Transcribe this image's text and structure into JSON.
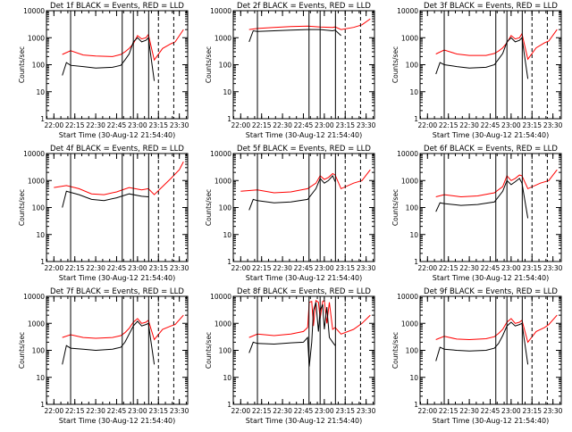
{
  "chart_data": [
    {
      "type": "line",
      "title": "Det 1f BLACK = Events, RED = LLD",
      "xlabel": "Start Time (30-Aug-12 21:54:40)",
      "ylabel": "Counts/sec",
      "yscale": "log",
      "ylim": [
        1,
        10000
      ],
      "xlim": [
        21.9111,
        23.6
      ],
      "x_ticks": [
        "22:00",
        "22:15",
        "22:30",
        "22:45",
        "23:00",
        "23:15",
        "23:30"
      ],
      "y_ticks": [
        "1",
        "10",
        "100",
        "1000",
        "10000"
      ],
      "vlines": [
        22.2,
        22.817,
        22.95,
        23.1333
      ],
      "dashed_vlines": [
        23.25,
        23.4333
      ],
      "series": [
        {
          "name": "LLD",
          "color": "#ff0000",
          "x": [
            22.1,
            22.2,
            22.35,
            22.5,
            22.7,
            22.8,
            22.85,
            22.9,
            22.95,
            23.0,
            23.05,
            23.1,
            23.13,
            23.2,
            23.3,
            23.4,
            23.45,
            23.55
          ],
          "y": [
            240,
            330,
            230,
            210,
            200,
            240,
            300,
            400,
            600,
            1200,
            900,
            1000,
            1300,
            150,
            400,
            600,
            700,
            2000
          ]
        },
        {
          "name": "Events",
          "color": "#000000",
          "x": [
            22.1,
            22.15,
            22.2,
            22.35,
            22.5,
            22.7,
            22.8,
            22.85,
            22.9,
            22.95,
            23.0,
            23.05,
            23.1,
            23.13,
            23.2
          ],
          "y": [
            40,
            120,
            95,
            85,
            75,
            80,
            95,
            150,
            250,
            700,
            1000,
            700,
            800,
            1000,
            25
          ]
        }
      ]
    },
    {
      "type": "line",
      "title": "Det 2f BLACK = Events, RED = LLD",
      "xlabel": "Start Time (30-Aug-12 21:54:40)",
      "ylabel": "Counts/sec",
      "yscale": "log",
      "ylim": [
        1,
        10000
      ],
      "xlim": [
        21.9111,
        23.6
      ],
      "x_ticks": [
        "22:00",
        "22:15",
        "22:30",
        "22:45",
        "23:00",
        "23:15",
        "23:30"
      ],
      "y_ticks": [
        "1",
        "10",
        "100",
        "1000",
        "10000"
      ],
      "vlines": [
        22.2,
        22.817,
        22.95,
        23.1333
      ],
      "dashed_vlines": [
        23.25,
        23.4333
      ],
      "series": [
        {
          "name": "LLD",
          "color": "#ff0000",
          "x": [
            22.1,
            22.2,
            22.4,
            22.6,
            22.8,
            22.95,
            23.1,
            23.13,
            23.2,
            23.35,
            23.45,
            23.55
          ],
          "y": [
            2000,
            2200,
            2400,
            2600,
            2700,
            2500,
            2400,
            2500,
            2000,
            2400,
            3000,
            5000
          ]
        },
        {
          "name": "Events",
          "color": "#000000",
          "x": [
            22.1,
            22.15,
            22.2,
            22.4,
            22.6,
            22.8,
            22.95,
            23.1,
            23.13,
            23.2
          ],
          "y": [
            700,
            1800,
            1700,
            1800,
            1900,
            2000,
            2000,
            1800,
            1900,
            1200
          ]
        }
      ]
    },
    {
      "type": "line",
      "title": "Det 3f BLACK = Events, RED = LLD",
      "xlabel": "Start Time (30-Aug-12 21:54:40)",
      "ylabel": "Counts/sec",
      "yscale": "log",
      "ylim": [
        1,
        10000
      ],
      "xlim": [
        21.9111,
        23.6
      ],
      "x_ticks": [
        "22:00",
        "22:15",
        "22:30",
        "22:45",
        "23:00",
        "23:15",
        "23:30"
      ],
      "y_ticks": [
        "1",
        "10",
        "100",
        "1000",
        "10000"
      ],
      "vlines": [
        22.2,
        22.817,
        22.95,
        23.1333
      ],
      "dashed_vlines": [
        23.25,
        23.4333
      ],
      "series": [
        {
          "name": "LLD",
          "color": "#ff0000",
          "x": [
            22.1,
            22.2,
            22.35,
            22.5,
            22.7,
            22.8,
            22.85,
            22.9,
            22.95,
            23.0,
            23.05,
            23.1,
            23.13,
            23.2,
            23.3,
            23.4,
            23.45,
            23.55
          ],
          "y": [
            250,
            350,
            250,
            220,
            220,
            260,
            320,
            420,
            650,
            1200,
            900,
            1000,
            1400,
            160,
            420,
            650,
            750,
            2000
          ]
        },
        {
          "name": "Events",
          "color": "#000000",
          "x": [
            22.1,
            22.15,
            22.2,
            22.35,
            22.5,
            22.7,
            22.8,
            22.85,
            22.9,
            22.95,
            23.0,
            23.05,
            23.1,
            23.13,
            23.2
          ],
          "y": [
            45,
            120,
            100,
            85,
            75,
            80,
            100,
            160,
            260,
            700,
            1000,
            700,
            800,
            1000,
            30
          ]
        }
      ]
    },
    {
      "type": "line",
      "title": "Det 4f BLACK = Events, RED = LLD",
      "xlabel": "Start Time (30-Aug-12 21:54:40)",
      "ylabel": "Counts/sec",
      "yscale": "log",
      "ylim": [
        1,
        10000
      ],
      "xlim": [
        21.9111,
        23.6
      ],
      "x_ticks": [
        "22:00",
        "22:15",
        "22:30",
        "22:45",
        "23:00",
        "23:15",
        "23:30"
      ],
      "y_ticks": [
        "1",
        "10",
        "100",
        "1000",
        "10000"
      ],
      "vlines": [
        22.2,
        22.817,
        22.95,
        23.1333
      ],
      "dashed_vlines": [
        23.25,
        23.4333
      ],
      "series": [
        {
          "name": "LLD",
          "color": "#ff0000",
          "x": [
            22.0,
            22.15,
            22.3,
            22.45,
            22.6,
            22.75,
            22.9,
            23.05,
            23.13,
            23.2,
            23.3,
            23.4,
            23.5,
            23.55
          ],
          "y": [
            550,
            650,
            500,
            320,
            300,
            380,
            550,
            450,
            500,
            300,
            600,
            1200,
            2500,
            5000
          ]
        },
        {
          "name": "Events",
          "color": "#000000",
          "x": [
            22.1,
            22.15,
            22.3,
            22.45,
            22.6,
            22.75,
            22.9,
            23.05,
            23.13
          ],
          "y": [
            100,
            400,
            300,
            200,
            180,
            230,
            320,
            260,
            250
          ]
        }
      ]
    },
    {
      "type": "line",
      "title": "Det 5f BLACK = Events, RED = LLD",
      "xlabel": "Start Time (30-Aug-12 21:54:40)",
      "ylabel": "Counts/sec",
      "yscale": "log",
      "ylim": [
        1,
        10000
      ],
      "xlim": [
        21.9111,
        23.6
      ],
      "x_ticks": [
        "22:00",
        "22:15",
        "22:30",
        "22:45",
        "23:00",
        "23:15",
        "23:30"
      ],
      "y_ticks": [
        "1",
        "10",
        "100",
        "1000",
        "10000"
      ],
      "vlines": [
        22.2,
        22.817,
        22.95,
        23.1333
      ],
      "dashed_vlines": [
        23.25,
        23.4333
      ],
      "series": [
        {
          "name": "LLD",
          "color": "#ff0000",
          "x": [
            22.0,
            22.2,
            22.4,
            22.6,
            22.8,
            22.9,
            22.95,
            23.0,
            23.05,
            23.1,
            23.13,
            23.2,
            23.35,
            23.45,
            23.55
          ],
          "y": [
            400,
            450,
            350,
            380,
            500,
            800,
            1500,
            1100,
            1300,
            1800,
            1600,
            500,
            800,
            1000,
            2500
          ]
        },
        {
          "name": "Events",
          "color": "#000000",
          "x": [
            22.1,
            22.15,
            22.2,
            22.4,
            22.6,
            22.8,
            22.9,
            22.95,
            23.0,
            23.05,
            23.1,
            23.13
          ],
          "y": [
            80,
            200,
            180,
            150,
            160,
            200,
            500,
            1200,
            800,
            1000,
            1500,
            900
          ]
        }
      ]
    },
    {
      "type": "line",
      "title": "Det 6f BLACK = Events, RED = LLD",
      "xlabel": "Start Time (30-Aug-12 21:54:40)",
      "ylabel": "Counts/sec",
      "yscale": "log",
      "ylim": [
        1,
        10000
      ],
      "xlim": [
        21.9111,
        23.6
      ],
      "x_ticks": [
        "22:00",
        "22:15",
        "22:30",
        "22:45",
        "23:00",
        "23:15",
        "23:30"
      ],
      "y_ticks": [
        "1",
        "10",
        "100",
        "1000",
        "10000"
      ],
      "vlines": [
        22.2,
        22.817,
        22.95,
        23.1333
      ],
      "dashed_vlines": [
        23.25,
        23.4333
      ],
      "series": [
        {
          "name": "LLD",
          "color": "#ff0000",
          "x": [
            22.1,
            22.2,
            22.4,
            22.6,
            22.8,
            22.9,
            22.95,
            23.0,
            23.05,
            23.1,
            23.13,
            23.2,
            23.35,
            23.45,
            23.55
          ],
          "y": [
            250,
            300,
            250,
            270,
            350,
            600,
            1500,
            1000,
            1200,
            1600,
            1500,
            500,
            800,
            1000,
            2500
          ]
        },
        {
          "name": "Events",
          "color": "#000000",
          "x": [
            22.1,
            22.15,
            22.2,
            22.4,
            22.6,
            22.8,
            22.9,
            22.95,
            23.0,
            23.05,
            23.1,
            23.13,
            23.2
          ],
          "y": [
            70,
            150,
            140,
            120,
            130,
            160,
            400,
            1000,
            700,
            900,
            1200,
            800,
            40
          ]
        }
      ]
    },
    {
      "type": "line",
      "title": "Det 7f BLACK = Events, RED = LLD",
      "xlabel": "Start Time (30-Aug-12 21:54:40)",
      "ylabel": "Counts/sec",
      "yscale": "log",
      "ylim": [
        1,
        10000
      ],
      "xlim": [
        21.9111,
        23.6
      ],
      "x_ticks": [
        "22:00",
        "22:15",
        "22:30",
        "22:45",
        "23:00",
        "23:15",
        "23:30"
      ],
      "y_ticks": [
        "1",
        "10",
        "100",
        "1000",
        "10000"
      ],
      "vlines": [
        22.2,
        22.817,
        22.95,
        23.1333
      ],
      "dashed_vlines": [
        23.25,
        23.4333
      ],
      "series": [
        {
          "name": "LLD",
          "color": "#ff0000",
          "x": [
            22.1,
            22.2,
            22.35,
            22.5,
            22.7,
            22.8,
            22.85,
            22.9,
            22.95,
            23.0,
            23.05,
            23.1,
            23.13,
            23.2,
            23.3,
            23.4,
            23.45,
            23.55
          ],
          "y": [
            300,
            380,
            300,
            280,
            300,
            350,
            450,
            650,
            1100,
            1500,
            1000,
            1100,
            1300,
            250,
            600,
            800,
            900,
            2000
          ]
        },
        {
          "name": "Events",
          "color": "#000000",
          "x": [
            22.1,
            22.15,
            22.2,
            22.35,
            22.5,
            22.7,
            22.8,
            22.85,
            22.9,
            22.95,
            23.0,
            23.05,
            23.1,
            23.13,
            23.2
          ],
          "y": [
            30,
            150,
            120,
            110,
            100,
            110,
            130,
            200,
            400,
            800,
            1200,
            800,
            900,
            1000,
            30
          ]
        }
      ]
    },
    {
      "type": "line",
      "title": "Det 8f BLACK = Events, RED = LLD",
      "xlabel": "Start Time (30-Aug-12 21:54:40)",
      "ylabel": "Counts/sec",
      "yscale": "log",
      "ylim": [
        1,
        10000
      ],
      "xlim": [
        21.9111,
        23.6
      ],
      "x_ticks": [
        "22:00",
        "22:15",
        "22:30",
        "22:45",
        "23:00",
        "23:15",
        "23:30"
      ],
      "y_ticks": [
        "1",
        "10",
        "100",
        "1000",
        "10000"
      ],
      "vlines": [
        22.2,
        22.817,
        22.95,
        23.1333
      ],
      "dashed_vlines": [
        23.25,
        23.4333
      ],
      "series": [
        {
          "name": "LLD",
          "color": "#ff0000",
          "x": [
            22.1,
            22.2,
            22.4,
            22.6,
            22.75,
            22.8,
            22.82,
            22.85,
            22.87,
            22.9,
            22.93,
            22.95,
            22.98,
            23.0,
            23.03,
            23.06,
            23.1,
            23.13,
            23.2,
            23.35,
            23.45,
            23.55
          ],
          "y": [
            300,
            400,
            350,
            400,
            500,
            700,
            6000,
            6500,
            800,
            7000,
            6000,
            1500,
            6500,
            7000,
            1000,
            6000,
            600,
            700,
            400,
            600,
            1000,
            2000
          ]
        },
        {
          "name": "Events",
          "color": "#000000",
          "x": [
            22.1,
            22.15,
            22.2,
            22.4,
            22.6,
            22.75,
            22.8,
            22.82,
            22.85,
            22.87,
            22.9,
            22.93,
            22.95,
            22.98,
            23.0,
            23.03,
            23.06,
            23.1,
            23.13
          ],
          "y": [
            80,
            200,
            180,
            170,
            190,
            200,
            300,
            25,
            200,
            3000,
            6000,
            500,
            3000,
            5000,
            600,
            4000,
            300,
            200,
            150
          ]
        }
      ]
    },
    {
      "type": "line",
      "title": "Det 9f BLACK = Events, RED = LLD",
      "xlabel": "Start Time (30-Aug-12 21:54:40)",
      "ylabel": "Counts/sec",
      "yscale": "log",
      "ylim": [
        1,
        10000
      ],
      "xlim": [
        21.9111,
        23.6
      ],
      "x_ticks": [
        "22:00",
        "22:15",
        "22:30",
        "22:45",
        "23:00",
        "23:15",
        "23:30"
      ],
      "y_ticks": [
        "1",
        "10",
        "100",
        "1000",
        "10000"
      ],
      "vlines": [
        22.2,
        22.817,
        22.95,
        23.1333
      ],
      "dashed_vlines": [
        23.25,
        23.4333
      ],
      "series": [
        {
          "name": "LLD",
          "color": "#ff0000",
          "x": [
            22.1,
            22.2,
            22.35,
            22.5,
            22.7,
            22.8,
            22.85,
            22.9,
            22.95,
            23.0,
            23.05,
            23.1,
            23.13,
            23.2,
            23.3,
            23.4,
            23.45,
            23.55
          ],
          "y": [
            250,
            330,
            260,
            250,
            270,
            320,
            420,
            600,
            1100,
            1500,
            1000,
            1100,
            1300,
            200,
            500,
            700,
            900,
            2000
          ]
        },
        {
          "name": "Events",
          "color": "#000000",
          "x": [
            22.1,
            22.15,
            22.2,
            22.35,
            22.5,
            22.7,
            22.8,
            22.85,
            22.9,
            22.95,
            23.0,
            23.05,
            23.1,
            23.13,
            23.2
          ],
          "y": [
            40,
            130,
            110,
            100,
            95,
            100,
            120,
            180,
            350,
            800,
            1100,
            800,
            900,
            1000,
            30
          ]
        }
      ]
    }
  ]
}
